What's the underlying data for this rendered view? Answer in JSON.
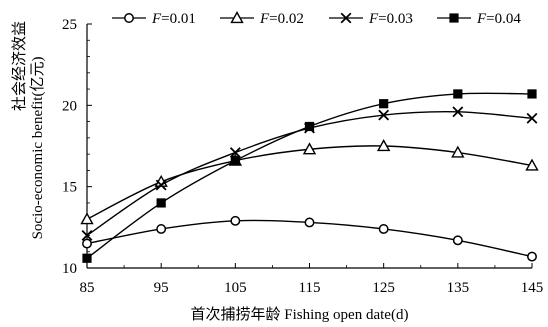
{
  "chart_data": {
    "type": "line",
    "title": "",
    "xlabel": "首次捕捞年龄 Fishing open date(d)",
    "ylabel_cn": "社会经济效益",
    "ylabel_en": "Socio-economic benefit(亿元)",
    "x": [
      85,
      95,
      105,
      115,
      125,
      135,
      145
    ],
    "xlim": [
      85,
      145
    ],
    "ylim": [
      10,
      25
    ],
    "x_ticks": [
      "85",
      "95",
      "105",
      "115",
      "125",
      "135",
      "145"
    ],
    "y_ticks": [
      "10",
      "15",
      "20",
      "25"
    ],
    "y_tick_values": [
      10,
      15,
      20,
      25
    ],
    "grid": false,
    "legend_position": "top",
    "series": [
      {
        "name": "F=0.01",
        "marker": "circle-open",
        "values": [
          11.5,
          12.4,
          12.9,
          12.8,
          12.4,
          11.7,
          10.7
        ]
      },
      {
        "name": "F=0.02",
        "marker": "triangle-open",
        "values": [
          13.0,
          15.3,
          16.6,
          17.3,
          17.5,
          17.1,
          16.3
        ]
      },
      {
        "name": "F=0.03",
        "marker": "x",
        "values": [
          12.0,
          15.1,
          17.1,
          18.6,
          19.4,
          19.6,
          19.2
        ]
      },
      {
        "name": "F=0.04",
        "marker": "square-filled",
        "values": [
          10.6,
          14.0,
          16.6,
          18.7,
          20.1,
          20.7,
          20.7
        ]
      }
    ],
    "legend": [
      {
        "label": "F",
        "suffix": "=0.01"
      },
      {
        "label": "F",
        "suffix": "=0.02"
      },
      {
        "label": "F",
        "suffix": "=0.03"
      },
      {
        "label": "F",
        "suffix": "=0.04"
      }
    ]
  }
}
